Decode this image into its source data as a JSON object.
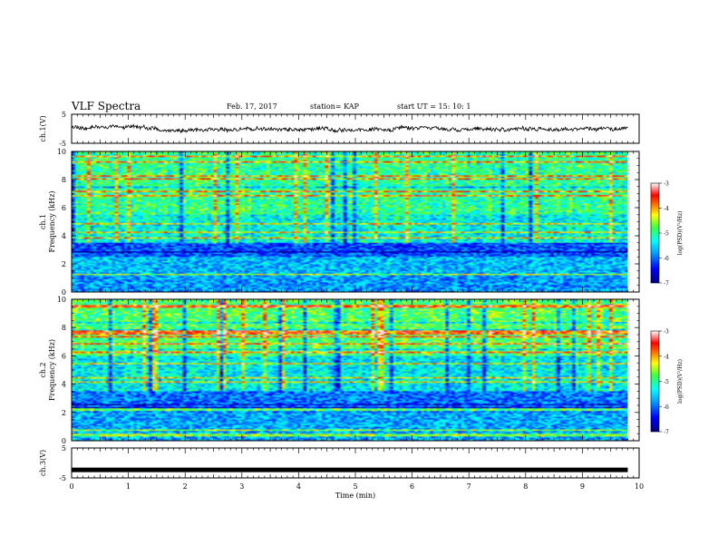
{
  "header": {
    "title": "VLF Spectra",
    "date": "Feb. 17, 2017",
    "station": "station= KAP",
    "start": "start  UT =   15: 10: 1"
  },
  "chart_data": [
    {
      "type": "line",
      "panel": "ch1-waveform",
      "ylabel": "ch.1(V)",
      "yticks": [
        "5",
        "-5"
      ],
      "ylim": [
        -5,
        5
      ],
      "xlim": [
        0,
        10
      ],
      "description_series": "noisy waveform around ~0.5 V, amplitude roughly ±1.5 V, recorded 0 to 9.8 min"
    },
    {
      "type": "heatmap",
      "panel": "ch1-spectrogram",
      "ylabel_top": "ch.1",
      "ylabel": "Frequency (kHz)",
      "yticks": [
        "10",
        "8",
        "6",
        "4",
        "2",
        "0"
      ],
      "ylim": [
        0,
        10
      ],
      "xlim": [
        0,
        10
      ],
      "data_extent_x": [
        0,
        9.8
      ],
      "colorbar": {
        "label": "log(PSD)(V²/Hz)",
        "ticks": [
          "-3",
          "-4",
          "-5",
          "-6",
          "-7"
        ],
        "range": [
          -7,
          -3
        ]
      }
    },
    {
      "type": "heatmap",
      "panel": "ch2-spectrogram",
      "ylabel_top": "ch.2",
      "ylabel": "Frequency (kHz)",
      "yticks": [
        "10",
        "8",
        "6",
        "4",
        "2",
        "0"
      ],
      "ylim": [
        0,
        10
      ],
      "xlim": [
        0,
        10
      ],
      "data_extent_x": [
        0,
        9.8
      ],
      "colorbar": {
        "label": "log(PSD)(V²/Hz)",
        "ticks": [
          "-3",
          "-4",
          "-5",
          "-6",
          "-7"
        ],
        "range": [
          -7,
          -3
        ]
      }
    },
    {
      "type": "line",
      "panel": "ch3-waveform",
      "ylabel": "ch.3(V)",
      "yticks": [
        "5",
        "-5"
      ],
      "ylim": [
        -5,
        5
      ],
      "xlim": [
        0,
        10
      ],
      "x": [
        0,
        9.8
      ],
      "y": [
        -2.3,
        -2.3
      ]
    }
  ],
  "xaxis": {
    "label": "Time (min)",
    "ticks": [
      "0",
      "1",
      "2",
      "3",
      "4",
      "5",
      "6",
      "7",
      "8",
      "9",
      "10"
    ]
  }
}
